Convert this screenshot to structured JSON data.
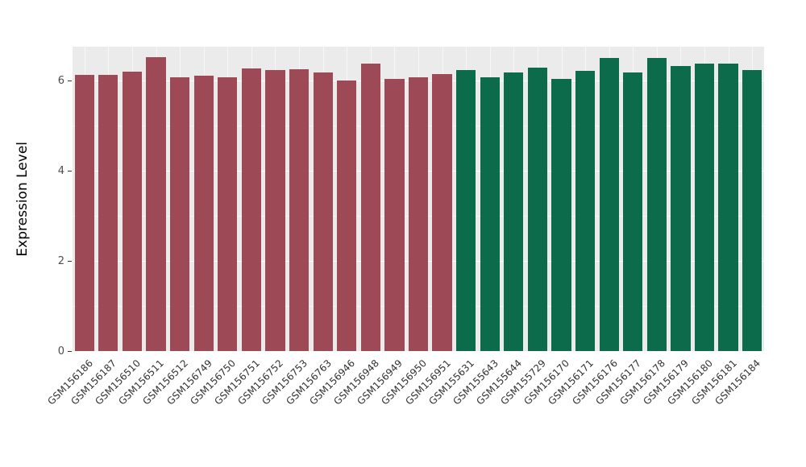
{
  "chart_data": {
    "type": "bar",
    "title": "",
    "xlabel": "",
    "ylabel": "Expression Level",
    "ylim": [
      0,
      6.75
    ],
    "yticks": [
      0,
      2,
      4,
      6
    ],
    "grid": true,
    "legend": "none",
    "panel_background": "#EBEBEB",
    "group_colors": {
      "group1": "#9E4A56",
      "group2": "#0C6B4A"
    },
    "bars": [
      {
        "label": "GSM156186",
        "value": 6.12,
        "group": "group1"
      },
      {
        "label": "GSM156187",
        "value": 6.12,
        "group": "group1"
      },
      {
        "label": "GSM156510",
        "value": 6.2,
        "group": "group1"
      },
      {
        "label": "GSM156511",
        "value": 6.52,
        "group": "group1"
      },
      {
        "label": "GSM156512",
        "value": 6.08,
        "group": "group1"
      },
      {
        "label": "GSM156749",
        "value": 6.1,
        "group": "group1"
      },
      {
        "label": "GSM156750",
        "value": 6.07,
        "group": "group1"
      },
      {
        "label": "GSM156751",
        "value": 6.27,
        "group": "group1"
      },
      {
        "label": "GSM156752",
        "value": 6.24,
        "group": "group1"
      },
      {
        "label": "GSM156753",
        "value": 6.25,
        "group": "group1"
      },
      {
        "label": "GSM156763",
        "value": 6.18,
        "group": "group1"
      },
      {
        "label": "GSM156946",
        "value": 6.0,
        "group": "group1"
      },
      {
        "label": "GSM156948",
        "value": 6.38,
        "group": "group1"
      },
      {
        "label": "GSM156949",
        "value": 6.03,
        "group": "group1"
      },
      {
        "label": "GSM156950",
        "value": 6.07,
        "group": "group1"
      },
      {
        "label": "GSM156951",
        "value": 6.15,
        "group": "group1"
      },
      {
        "label": "GSM155631",
        "value": 6.23,
        "group": "group2"
      },
      {
        "label": "GSM155643",
        "value": 6.07,
        "group": "group2"
      },
      {
        "label": "GSM155644",
        "value": 6.18,
        "group": "group2"
      },
      {
        "label": "GSM155729",
        "value": 6.28,
        "group": "group2"
      },
      {
        "label": "GSM156170",
        "value": 6.03,
        "group": "group2"
      },
      {
        "label": "GSM156171",
        "value": 6.22,
        "group": "group2"
      },
      {
        "label": "GSM156176",
        "value": 6.5,
        "group": "group2"
      },
      {
        "label": "GSM156177",
        "value": 6.17,
        "group": "group2"
      },
      {
        "label": "GSM156178",
        "value": 6.5,
        "group": "group2"
      },
      {
        "label": "GSM156179",
        "value": 6.33,
        "group": "group2"
      },
      {
        "label": "GSM156180",
        "value": 6.38,
        "group": "group2"
      },
      {
        "label": "GSM156181",
        "value": 6.38,
        "group": "group2"
      },
      {
        "label": "GSM156184",
        "value": 6.24,
        "group": "group2"
      }
    ]
  }
}
